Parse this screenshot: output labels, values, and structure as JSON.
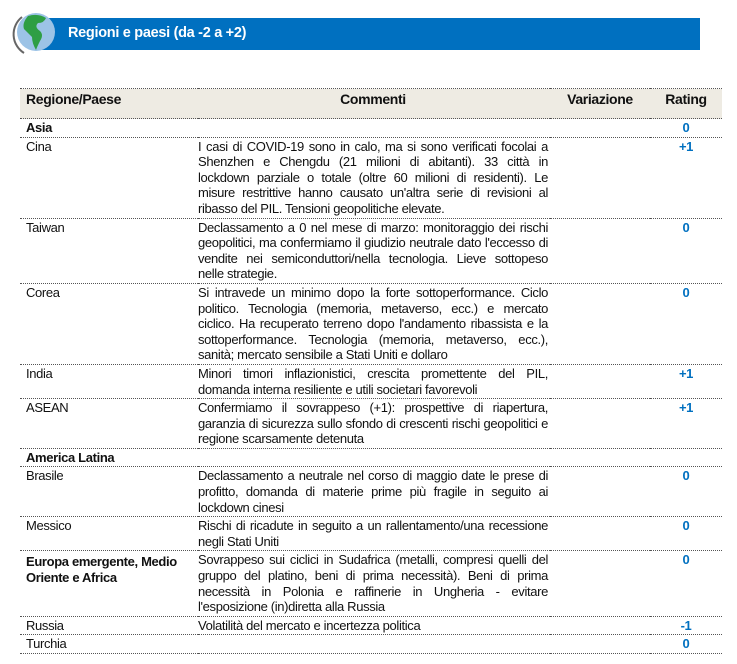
{
  "title": "Regioni e paesi (da -2 a +2)",
  "colors": {
    "accent": "#0070c0",
    "header_bg": "#eeebe3"
  },
  "icon": "globe-icon",
  "headers": [
    "Regione/Paese",
    "Commenti",
    "Variazione",
    "Rating"
  ],
  "rows": [
    {
      "name": "Asia",
      "comment": "",
      "variation": "",
      "rating": "0",
      "group": true
    },
    {
      "name": "Cina",
      "comment": "I casi di COVID-19 sono in calo, ma si sono verificati focolai a Shenzhen e Chengdu (21 milioni di abitanti). 33 città in lockdown parziale o totale (oltre 60 milioni di residenti). Le misure restrittive hanno causato un'altra serie di revisioni al ribasso del PIL. Tensioni geopolitiche elevate.",
      "variation": "",
      "rating": "+1"
    },
    {
      "name": "Taiwan",
      "comment": "Declassamento a 0 nel mese di marzo: monitoraggio dei rischi geopolitici, ma confermiamo il giudizio neutrale dato l'eccesso di vendite nei semiconduttori/nella tecnologia. Lieve sottopeso nelle strategie.",
      "variation": "",
      "rating": "0"
    },
    {
      "name": "Corea",
      "comment": "Si intravede un minimo dopo la forte sottoperformance. Ciclo politico. Tecnologia (memoria, metaverso, ecc.) e mercato ciclico. Ha recuperato terreno dopo l'andamento ribassista e la sottoperformance. Tecnologia (memoria, metaverso, ecc.), sanità; mercato sensibile a Stati Uniti e dollaro",
      "variation": "",
      "rating": "0"
    },
    {
      "name": "India",
      "comment": "Minori timori inflazionistici, crescita promettente del PIL, domanda interna resiliente e utili societari favorevoli",
      "variation": "",
      "rating": "+1"
    },
    {
      "name": "ASEAN",
      "comment": "Confermiamo il sovrappeso (+1): prospettive di riapertura, garanzia di sicurezza sullo sfondo di crescenti rischi geopolitici e regione scarsamente detenuta",
      "variation": "",
      "rating": "+1"
    },
    {
      "name": "America Latina",
      "comment": "",
      "variation": "",
      "rating": "",
      "group": true
    },
    {
      "name": "Brasile",
      "comment": "Declassamento a neutrale nel corso di maggio date le prese di profitto, domanda di materie prime più fragile in seguito ai lockdown cinesi",
      "variation": "",
      "rating": "0"
    },
    {
      "name": "Messico",
      "comment": "Rischi di ricadute in seguito a un rallentamento/una recessione negli Stati Uniti",
      "variation": "",
      "rating": "0"
    },
    {
      "name": "Europa emergente, Medio Oriente e Africa",
      "comment": "Sovrappeso sui ciclici in Sudafrica (metalli, compresi quelli del gruppo del platino, beni di prima necessità). Beni di prima necessità in Polonia e raffinerie in Ungheria - evitare l'esposizione (in)diretta alla Russia",
      "variation": "",
      "rating": "0",
      "group": true
    },
    {
      "name": "Russia",
      "comment": "Volatilità del mercato e incertezza politica",
      "variation": "",
      "rating": "-1"
    },
    {
      "name": "Turchia",
      "comment": "",
      "variation": "",
      "rating": "0"
    }
  ]
}
